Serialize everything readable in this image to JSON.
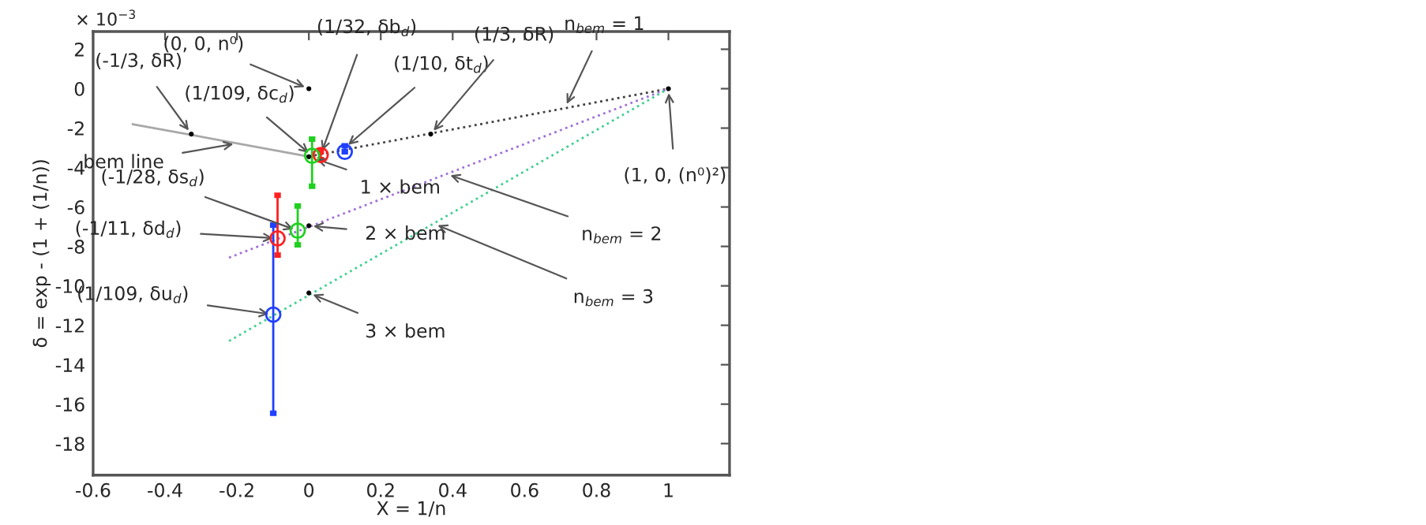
{
  "chart_data": {
    "type": "scatter",
    "xlabel": "X = 1/n",
    "ylabel": "δ = exp - (1 + (1/n))",
    "xlim": [
      -0.6,
      1.17
    ],
    "ylim": [
      -19.6,
      2.9
    ],
    "xticks": [
      -0.6,
      -0.4,
      -0.2,
      0,
      0.2,
      0.4,
      0.6,
      0.8,
      1
    ],
    "yticks": [
      2,
      0,
      -2,
      -4,
      -6,
      -8,
      -10,
      -12,
      -14,
      -16,
      -18
    ],
    "grid": false,
    "series": [
      {
        "type": "line",
        "line_style": "solid",
        "color": "#a8a8a8",
        "x": [
          -0.49,
          0
        ],
        "values": [
          -1.8,
          -3.44
        ]
      },
      {
        "type": "line",
        "line_style": "dotted",
        "color": "#404040",
        "x": [
          0,
          1
        ],
        "values": [
          -3.44,
          0
        ]
      },
      {
        "type": "line",
        "line_style": "dotted",
        "color": "#a070d8",
        "x": [
          -0.222,
          1
        ],
        "values": [
          -8.57,
          0
        ]
      },
      {
        "type": "line",
        "line_style": "dotted",
        "color": "#40d090",
        "x": [
          -0.222,
          1
        ],
        "values": [
          -12.8,
          0
        ]
      },
      {
        "marker": "circle",
        "color": "#000000",
        "x": [
          0,
          1,
          -0.327,
          0.339,
          0,
          0,
          0
        ],
        "values": [
          0,
          0,
          -2.3,
          -2.3,
          -3.45,
          -6.95,
          -10.36
        ]
      },
      {
        "marker": "circle",
        "color": "#ff2020",
        "x": [
          0.033,
          -0.087
        ],
        "values": [
          -3.36,
          -7.59
        ],
        "errors": [
          [
            -3.6,
            -3.2
          ],
          [
            -8.44,
            -5.41
          ]
        ]
      },
      {
        "marker": "circle",
        "color": "#20d020",
        "x": [
          0.009,
          -0.031
        ],
        "values": [
          -3.4,
          -7.2
        ],
        "errors": [
          [
            -4.95,
            -2.56
          ],
          [
            -7.92,
            -5.95
          ]
        ]
      },
      {
        "marker": "circle",
        "color": "#2040ff",
        "x": [
          0.1,
          -0.099
        ],
        "values": [
          -3.2,
          -11.46
        ],
        "errors": [
          [
            -3.2,
            -2.9
          ],
          [
            -16.46,
            -6.92
          ]
        ]
      }
    ],
    "annotations": [
      {
        "text": "(0, 0, n⁰)",
        "x": 0,
        "y": 0
      },
      {
        "text": "(1/32, δb$_{d}$)",
        "x": 0.033,
        "y": -3.36
      },
      {
        "text": "(-1/3, δR)",
        "x": -0.327,
        "y": -2.3
      },
      {
        "text": "(1/109, δc$_{d}$)",
        "x": 0.009,
        "y": -3.4
      },
      {
        "text": "(1/10, δt$_{d}$)",
        "x": 0.1,
        "y": -3.0
      },
      {
        "text": "(1/3, δR)",
        "x": 0.339,
        "y": -2.3
      },
      {
        "text": "n$_{bem}$ = 1",
        "x": 0.712,
        "y": -0.98
      },
      {
        "text": "(1, 0, (n⁰)²)",
        "x": 1,
        "y": 0
      },
      {
        "text": "bem line",
        "x": -0.198,
        "y": -2.77
      },
      {
        "text": "1 × bem",
        "x": 0.01,
        "y": -3.5
      },
      {
        "text": "(-1/28, δs$_{d}$)",
        "x": -0.031,
        "y": -7.2
      },
      {
        "text": "(-1/11, δd$_{d}$)",
        "x": -0.087,
        "y": -7.59
      },
      {
        "text": "2 × bem",
        "x": 0,
        "y": -6.95
      },
      {
        "text": "n$_{bem}$ = 2",
        "x": 0.382,
        "y": -4.32
      },
      {
        "text": "n$_{bem}$ = 3",
        "x": 0.347,
        "y": -6.84
      },
      {
        "text": "(1/109, δu$_{d}$)",
        "x": -0.099,
        "y": -11.46
      },
      {
        "text": "3 × bem",
        "x": 0,
        "y": -10.36
      },
      "× 10$^{−3}$"
    ]
  }
}
